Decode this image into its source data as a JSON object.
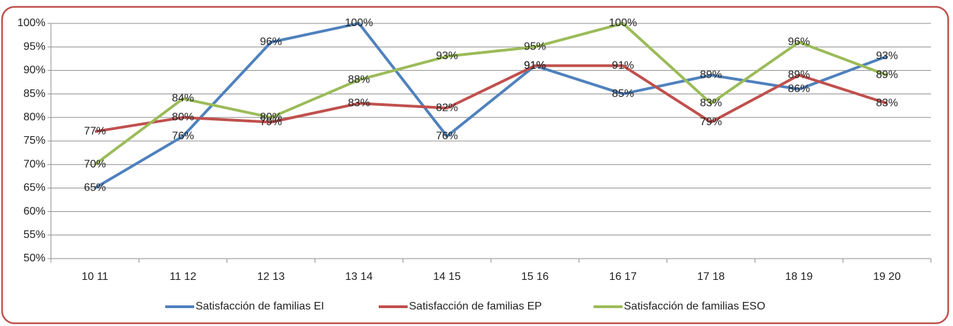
{
  "chart_data": {
    "type": "line",
    "categories": [
      "10 11",
      "11 12",
      "12 13",
      "13 14",
      "14 15",
      "15 16",
      "16 17",
      "17 18",
      "18 19",
      "19 20"
    ],
    "series": [
      {
        "name": "Satisfacción de familias EI",
        "color": "#4f81bd",
        "values": [
          65,
          76,
          96,
          100,
          76,
          91,
          85,
          89,
          86,
          93
        ],
        "value_labels": [
          "65%",
          "76%",
          "96%",
          "100%",
          "76%",
          "91%",
          "85%",
          "89%",
          "86%",
          "93%"
        ]
      },
      {
        "name": "Satisfacción de familias EP",
        "color": "#c0504d",
        "values": [
          77,
          80,
          79,
          83,
          82,
          91,
          91,
          79,
          89,
          83
        ],
        "value_labels": [
          "77%",
          "80%",
          "79%",
          "83%",
          "82%",
          "91%",
          "91%",
          "79%",
          "89%",
          "83%"
        ]
      },
      {
        "name": "Satisfacción de familias ESO",
        "color": "#9bbb59",
        "values": [
          70,
          84,
          80,
          88,
          93,
          95,
          100,
          83,
          96,
          89
        ],
        "value_labels": [
          "70%",
          "84%",
          "80%",
          "88%",
          "93%",
          "95%",
          "100%",
          "83%",
          "96%",
          "89%"
        ]
      }
    ],
    "ylim": [
      50,
      100
    ],
    "yticks": [
      {
        "value": 50,
        "label": "50%"
      },
      {
        "value": 55,
        "label": "55%"
      },
      {
        "value": 60,
        "label": "60%"
      },
      {
        "value": 65,
        "label": "65%"
      },
      {
        "value": 70,
        "label": "70%"
      },
      {
        "value": 75,
        "label": "75%"
      },
      {
        "value": 80,
        "label": "80%"
      },
      {
        "value": 85,
        "label": "85%"
      },
      {
        "value": 90,
        "label": "90%"
      },
      {
        "value": 95,
        "label": "95%"
      },
      {
        "value": 100,
        "label": "100%"
      }
    ],
    "grid": true,
    "legend": "bottom"
  }
}
